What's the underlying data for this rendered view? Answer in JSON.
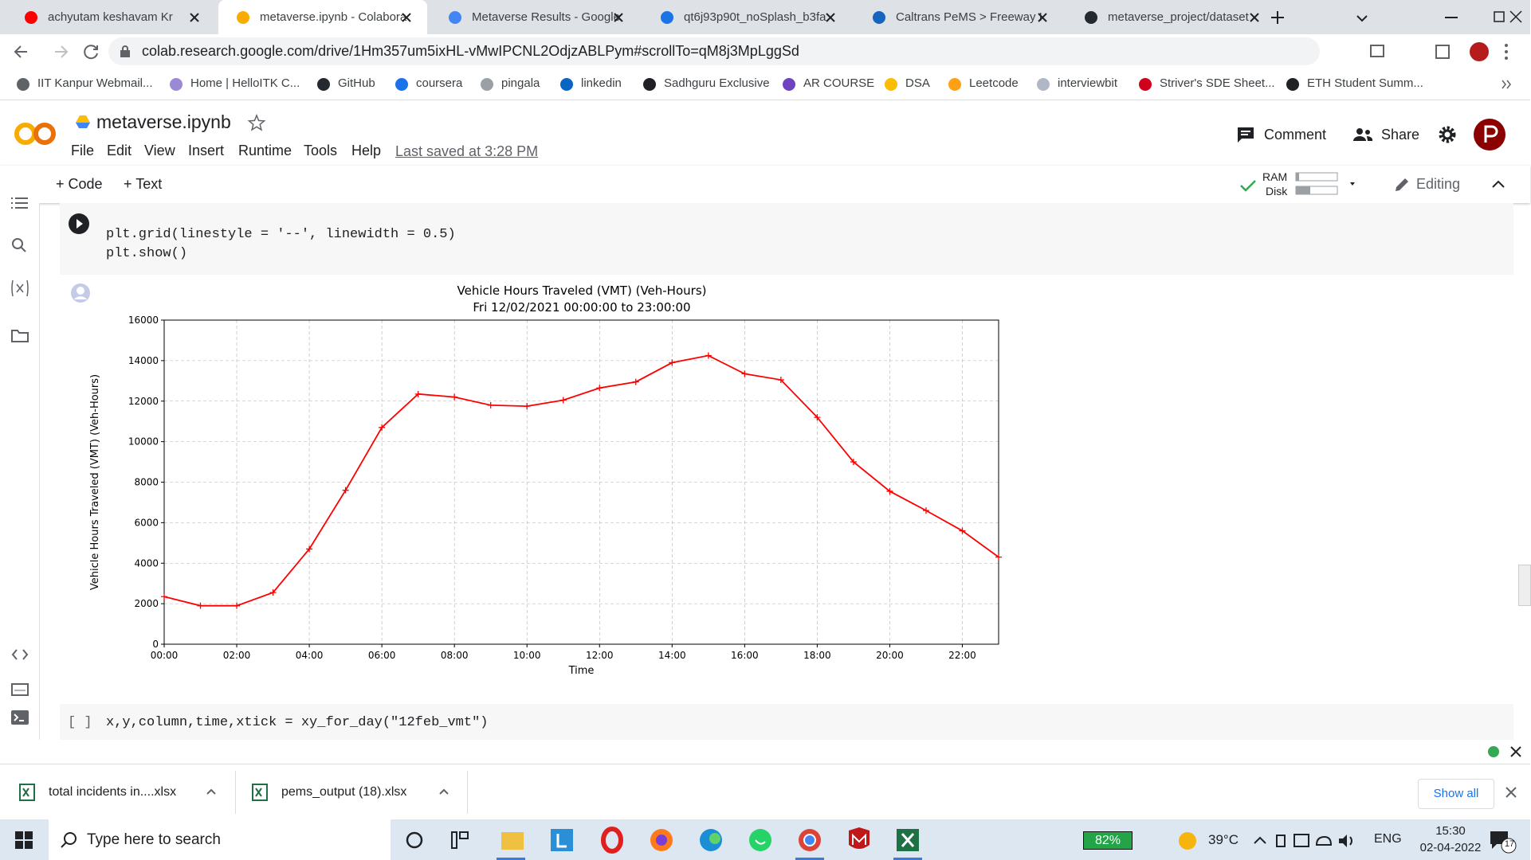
{
  "browser": {
    "tabs": [
      "achyutam keshavam Kr",
      "metaverse.ipynb - Colabora",
      "Metaverse Results - Google",
      "qt6j93p90t_noSplash_b3fa",
      "Caltrans PeMS > Freeway I",
      "metaverse_project/dataset"
    ],
    "url": "colab.research.google.com/drive/1Hm357um5ixHL-vMwIPCNL2OdjzABLPym#scrollTo=qM8j3MpLggSd",
    "bookmarks": [
      "IIT Kanpur Webmail...",
      "Home | HelloITK C...",
      "GitHub",
      "coursera",
      "pingala",
      "linkedin",
      "Sadhguru Exclusive",
      "AR COURSE",
      "DSA",
      "Leetcode",
      "interviewbit",
      "Striver's SDE Sheet...",
      "ETH Student Summ..."
    ]
  },
  "colab": {
    "filename": "metaverse.ipynb",
    "menu": [
      "File",
      "Edit",
      "View",
      "Insert",
      "Runtime",
      "Tools",
      "Help"
    ],
    "last_saved": "Last saved at 3:28 PM",
    "comment": "Comment",
    "share": "Share",
    "add_code": "+ Code",
    "add_text": "+ Text",
    "ram": "RAM",
    "disk": "Disk",
    "editing": "Editing"
  },
  "cells": [
    {
      "code": [
        "plt.grid(linestyle = '--', linewidth = 0.5)",
        "plt.show()"
      ]
    },
    {
      "prompt": "[ ]",
      "code": [
        "x,y,column,time,xtick = xy_for_day(\"12feb_vmt\")"
      ]
    }
  ],
  "chart_data": {
    "type": "line",
    "title": "Vehicle Hours Traveled (VMT) (Veh-Hours)",
    "subtitle": "Fri 12/02/2021 00:00:00 to 23:00:00",
    "x_label": "Time",
    "y_label": "Vehicle Hours Traveled (VMT) (Veh-Hours)",
    "x": [
      0,
      1,
      2,
      3,
      4,
      5,
      6,
      7,
      8,
      9,
      10,
      11,
      12,
      13,
      14,
      15,
      16,
      17,
      18,
      19,
      20,
      21,
      22,
      23
    ],
    "values": [
      2350,
      1900,
      1900,
      2550,
      4700,
      7600,
      10700,
      12350,
      12200,
      11800,
      11750,
      12050,
      12650,
      12950,
      13900,
      14250,
      13350,
      13050,
      11200,
      9000,
      7550,
      6600,
      5600,
      4300
    ],
    "color": "#ff0000",
    "xlim": [
      0,
      23
    ],
    "ylim": [
      0,
      16000
    ],
    "xticks": [
      {
        "value": 0,
        "label": "00:00"
      },
      {
        "value": 2,
        "label": "02:00"
      },
      {
        "value": 4,
        "label": "04:00"
      },
      {
        "value": 6,
        "label": "06:00"
      },
      {
        "value": 8,
        "label": "08:00"
      },
      {
        "value": 10,
        "label": "10:00"
      },
      {
        "value": 12,
        "label": "12:00"
      },
      {
        "value": 14,
        "label": "14:00"
      },
      {
        "value": 16,
        "label": "16:00"
      },
      {
        "value": 18,
        "label": "18:00"
      },
      {
        "value": 20,
        "label": "20:00"
      },
      {
        "value": 22,
        "label": "22:00"
      }
    ],
    "yticks": [
      0,
      2000,
      4000,
      6000,
      8000,
      10000,
      12000,
      14000,
      16000
    ],
    "grid": true,
    "grid_style": "dashed",
    "marker": "+"
  },
  "downloads": {
    "files": [
      "total incidents in....xlsx",
      "pems_output (18).xlsx"
    ],
    "show_all": "Show all"
  },
  "taskbar": {
    "search": "Type here to search",
    "battery": "82%",
    "temperature": "39°C",
    "language": "ENG",
    "time": "15:30",
    "date": "02-04-2022",
    "notifications": "17"
  }
}
